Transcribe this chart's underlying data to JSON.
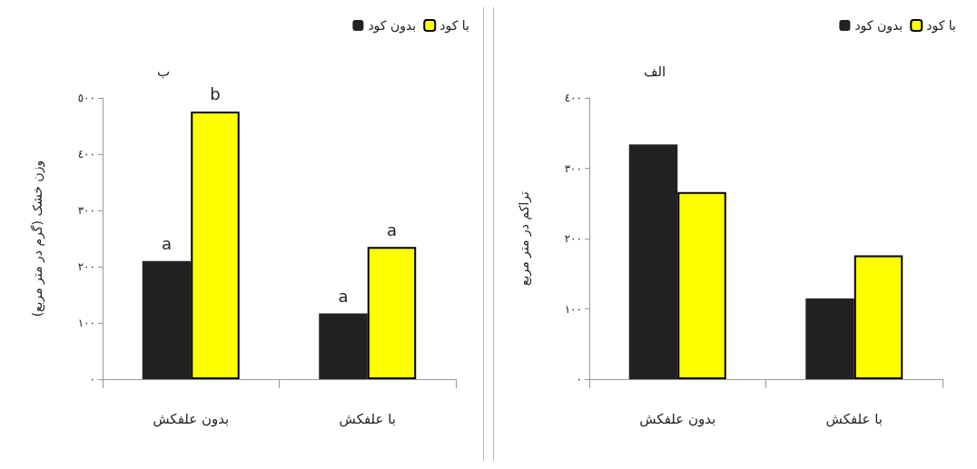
{
  "chart_data": [
    {
      "type": "bar",
      "title": "ب",
      "ylabel": "وزن خشک (گرم در متر مربع)",
      "categories": [
        "بدون علفکش",
        "با علفکش"
      ],
      "series": [
        {
          "name": "بدون کود",
          "color": "#222222",
          "values": [
            210,
            117
          ]
        },
        {
          "name": "با کود",
          "color": "#ffff00",
          "values": [
            476,
            235
          ]
        }
      ],
      "ylim": [
        0,
        500
      ],
      "yticks": [
        {
          "value": 0,
          "label": "٠"
        },
        {
          "value": 100,
          "label": "١٠٠"
        },
        {
          "value": 200,
          "label": "٢٠٠"
        },
        {
          "value": 300,
          "label": "٣٠٠"
        },
        {
          "value": 400,
          "label": "٤٠٠"
        },
        {
          "value": 500,
          "label": "٥٠٠"
        }
      ],
      "annotations": [
        {
          "text": "a",
          "x": "بدون علفکش",
          "y": 210
        },
        {
          "text": "b",
          "x": "بدون علفکش",
          "y": 476
        },
        {
          "text": "a",
          "x": "با علفکش",
          "y": 117
        },
        {
          "text": "a",
          "x": "با علفکش",
          "y": 235
        }
      ],
      "grid": false,
      "legend": "top right"
    },
    {
      "type": "bar",
      "title": "الف",
      "ylabel": "تراکم در متر مربع",
      "categories": [
        "بدون علفکش",
        "با علفکش"
      ],
      "series": [
        {
          "name": "بدون کود",
          "color": "#222222",
          "values": [
            334,
            115
          ]
        },
        {
          "name": "با کود",
          "color": "#ffff00",
          "values": [
            266,
            176
          ]
        }
      ],
      "ylim": [
        0,
        400
      ],
      "yticks": [
        {
          "value": 0,
          "label": "٠"
        },
        {
          "value": 100,
          "label": "١٠٠"
        },
        {
          "value": 200,
          "label": "٢٠٠"
        },
        {
          "value": 300,
          "label": "٣٠٠"
        },
        {
          "value": 400,
          "label": "٤٠٠"
        }
      ],
      "grid": false,
      "legend": "top right"
    }
  ]
}
